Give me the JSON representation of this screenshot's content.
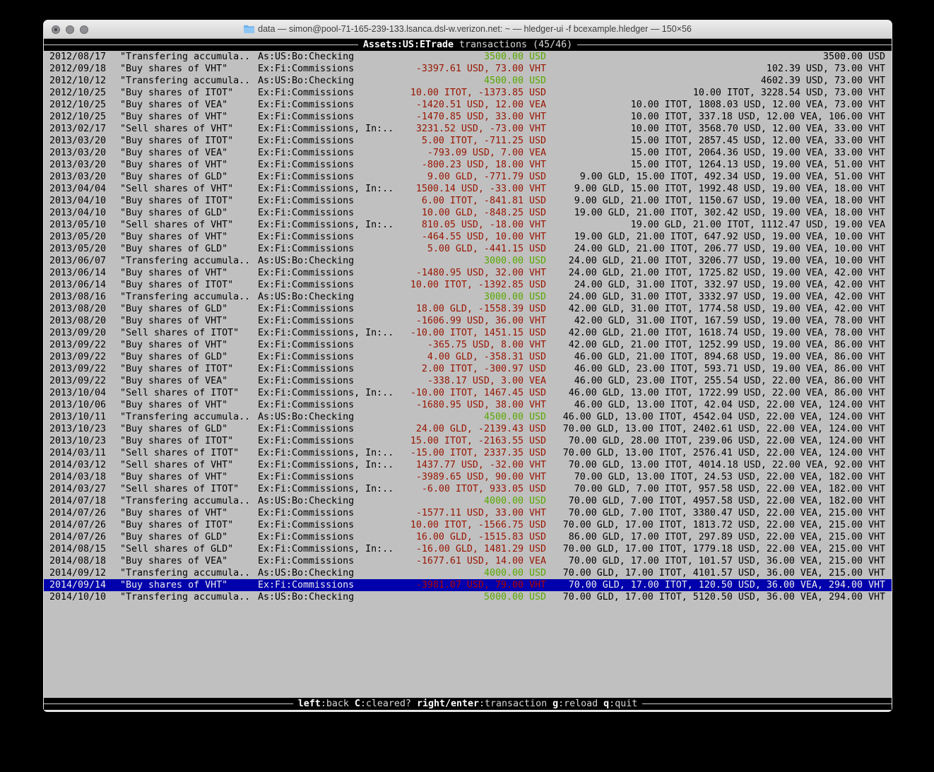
{
  "window": {
    "title": "data — simon@pool-71-165-239-133.lsanca.dsl-w.verizon.net: ~ — hledger-ui -f bcexample.hledger — 150×56",
    "traffic_lights": [
      "close",
      "minimize",
      "zoom"
    ]
  },
  "screen": {
    "account": "Assets:US:ETrade",
    "suffix": " transactions (45/46)"
  },
  "register": {
    "selected_index": 44,
    "rows": [
      {
        "date": "2012/08/17",
        "description": "\"Transfering accumula..",
        "accounts": "As:US:Bo:Checking",
        "amount": "3500.00 USD",
        "amount_color": "green",
        "balance": "3500.00 USD"
      },
      {
        "date": "2012/09/18",
        "description": "\"Buy shares of VHT\"",
        "accounts": "Ex:Fi:Commissions",
        "amount": "-3397.61 USD, 73.00 VHT",
        "amount_color": "red",
        "balance": "102.39 USD, 73.00 VHT"
      },
      {
        "date": "2012/10/12",
        "description": "\"Transfering accumula..",
        "accounts": "As:US:Bo:Checking",
        "amount": "4500.00 USD",
        "amount_color": "green",
        "balance": "4602.39 USD, 73.00 VHT"
      },
      {
        "date": "2012/10/25",
        "description": "\"Buy shares of ITOT\"",
        "accounts": "Ex:Fi:Commissions",
        "amount": "10.00 ITOT, -1373.85 USD",
        "amount_color": "red",
        "balance": "10.00 ITOT, 3228.54 USD, 73.00 VHT"
      },
      {
        "date": "2012/10/25",
        "description": "\"Buy shares of VEA\"",
        "accounts": "Ex:Fi:Commissions",
        "amount": "-1420.51 USD, 12.00 VEA",
        "amount_color": "red",
        "balance": "10.00 ITOT, 1808.03 USD, 12.00 VEA, 73.00 VHT"
      },
      {
        "date": "2012/10/25",
        "description": "\"Buy shares of VHT\"",
        "accounts": "Ex:Fi:Commissions",
        "amount": "-1470.85 USD, 33.00 VHT",
        "amount_color": "red",
        "balance": "10.00 ITOT, 337.18 USD, 12.00 VEA, 106.00 VHT"
      },
      {
        "date": "2013/02/17",
        "description": "\"Sell shares of VHT\"",
        "accounts": "Ex:Fi:Commissions, In:..",
        "amount": "3231.52 USD, -73.00 VHT",
        "amount_color": "red",
        "balance": "10.00 ITOT, 3568.70 USD, 12.00 VEA, 33.00 VHT"
      },
      {
        "date": "2013/03/20",
        "description": "\"Buy shares of ITOT\"",
        "accounts": "Ex:Fi:Commissions",
        "amount": "5.00 ITOT, -711.25 USD",
        "amount_color": "red",
        "balance": "15.00 ITOT, 2857.45 USD, 12.00 VEA, 33.00 VHT"
      },
      {
        "date": "2013/03/20",
        "description": "\"Buy shares of VEA\"",
        "accounts": "Ex:Fi:Commissions",
        "amount": "-793.09 USD, 7.00 VEA",
        "amount_color": "red",
        "balance": "15.00 ITOT, 2064.36 USD, 19.00 VEA, 33.00 VHT"
      },
      {
        "date": "2013/03/20",
        "description": "\"Buy shares of VHT\"",
        "accounts": "Ex:Fi:Commissions",
        "amount": "-800.23 USD, 18.00 VHT",
        "amount_color": "red",
        "balance": "15.00 ITOT, 1264.13 USD, 19.00 VEA, 51.00 VHT"
      },
      {
        "date": "2013/03/20",
        "description": "\"Buy shares of GLD\"",
        "accounts": "Ex:Fi:Commissions",
        "amount": "9.00 GLD, -771.79 USD",
        "amount_color": "red",
        "balance": "9.00 GLD, 15.00 ITOT, 492.34 USD, 19.00 VEA, 51.00 VHT"
      },
      {
        "date": "2013/04/04",
        "description": "\"Sell shares of VHT\"",
        "accounts": "Ex:Fi:Commissions, In:..",
        "amount": "1500.14 USD, -33.00 VHT",
        "amount_color": "red",
        "balance": "9.00 GLD, 15.00 ITOT, 1992.48 USD, 19.00 VEA, 18.00 VHT"
      },
      {
        "date": "2013/04/10",
        "description": "\"Buy shares of ITOT\"",
        "accounts": "Ex:Fi:Commissions",
        "amount": "6.00 ITOT, -841.81 USD",
        "amount_color": "red",
        "balance": "9.00 GLD, 21.00 ITOT, 1150.67 USD, 19.00 VEA, 18.00 VHT"
      },
      {
        "date": "2013/04/10",
        "description": "\"Buy shares of GLD\"",
        "accounts": "Ex:Fi:Commissions",
        "amount": "10.00 GLD, -848.25 USD",
        "amount_color": "red",
        "balance": "19.00 GLD, 21.00 ITOT, 302.42 USD, 19.00 VEA, 18.00 VHT"
      },
      {
        "date": "2013/05/10",
        "description": "\"Sell shares of VHT\"",
        "accounts": "Ex:Fi:Commissions, In:..",
        "amount": "810.05 USD, -18.00 VHT",
        "amount_color": "red",
        "balance": "19.00 GLD, 21.00 ITOT, 1112.47 USD, 19.00 VEA"
      },
      {
        "date": "2013/05/20",
        "description": "\"Buy shares of VHT\"",
        "accounts": "Ex:Fi:Commissions",
        "amount": "-464.55 USD, 10.00 VHT",
        "amount_color": "red",
        "balance": "19.00 GLD, 21.00 ITOT, 647.92 USD, 19.00 VEA, 10.00 VHT"
      },
      {
        "date": "2013/05/20",
        "description": "\"Buy shares of GLD\"",
        "accounts": "Ex:Fi:Commissions",
        "amount": "5.00 GLD, -441.15 USD",
        "amount_color": "red",
        "balance": "24.00 GLD, 21.00 ITOT, 206.77 USD, 19.00 VEA, 10.00 VHT"
      },
      {
        "date": "2013/06/07",
        "description": "\"Transfering accumula..",
        "accounts": "As:US:Bo:Checking",
        "amount": "3000.00 USD",
        "amount_color": "green",
        "balance": "24.00 GLD, 21.00 ITOT, 3206.77 USD, 19.00 VEA, 10.00 VHT"
      },
      {
        "date": "2013/06/14",
        "description": "\"Buy shares of VHT\"",
        "accounts": "Ex:Fi:Commissions",
        "amount": "-1480.95 USD, 32.00 VHT",
        "amount_color": "red",
        "balance": "24.00 GLD, 21.00 ITOT, 1725.82 USD, 19.00 VEA, 42.00 VHT"
      },
      {
        "date": "2013/06/14",
        "description": "\"Buy shares of ITOT\"",
        "accounts": "Ex:Fi:Commissions",
        "amount": "10.00 ITOT, -1392.85 USD",
        "amount_color": "red",
        "balance": "24.00 GLD, 31.00 ITOT, 332.97 USD, 19.00 VEA, 42.00 VHT"
      },
      {
        "date": "2013/08/16",
        "description": "\"Transfering accumula..",
        "accounts": "As:US:Bo:Checking",
        "amount": "3000.00 USD",
        "amount_color": "green",
        "balance": "24.00 GLD, 31.00 ITOT, 3332.97 USD, 19.00 VEA, 42.00 VHT"
      },
      {
        "date": "2013/08/20",
        "description": "\"Buy shares of GLD\"",
        "accounts": "Ex:Fi:Commissions",
        "amount": "18.00 GLD, -1558.39 USD",
        "amount_color": "red",
        "balance": "42.00 GLD, 31.00 ITOT, 1774.58 USD, 19.00 VEA, 42.00 VHT"
      },
      {
        "date": "2013/08/20",
        "description": "\"Buy shares of VHT\"",
        "accounts": "Ex:Fi:Commissions",
        "amount": "-1606.99 USD, 36.00 VHT",
        "amount_color": "red",
        "balance": "42.00 GLD, 31.00 ITOT, 167.59 USD, 19.00 VEA, 78.00 VHT"
      },
      {
        "date": "2013/09/20",
        "description": "\"Sell shares of ITOT\"",
        "accounts": "Ex:Fi:Commissions, In:..",
        "amount": "-10.00 ITOT, 1451.15 USD",
        "amount_color": "red",
        "balance": "42.00 GLD, 21.00 ITOT, 1618.74 USD, 19.00 VEA, 78.00 VHT"
      },
      {
        "date": "2013/09/22",
        "description": "\"Buy shares of VHT\"",
        "accounts": "Ex:Fi:Commissions",
        "amount": "-365.75 USD, 8.00 VHT",
        "amount_color": "red",
        "balance": "42.00 GLD, 21.00 ITOT, 1252.99 USD, 19.00 VEA, 86.00 VHT"
      },
      {
        "date": "2013/09/22",
        "description": "\"Buy shares of GLD\"",
        "accounts": "Ex:Fi:Commissions",
        "amount": "4.00 GLD, -358.31 USD",
        "amount_color": "red",
        "balance": "46.00 GLD, 21.00 ITOT, 894.68 USD, 19.00 VEA, 86.00 VHT"
      },
      {
        "date": "2013/09/22",
        "description": "\"Buy shares of ITOT\"",
        "accounts": "Ex:Fi:Commissions",
        "amount": "2.00 ITOT, -300.97 USD",
        "amount_color": "red",
        "balance": "46.00 GLD, 23.00 ITOT, 593.71 USD, 19.00 VEA, 86.00 VHT"
      },
      {
        "date": "2013/09/22",
        "description": "\"Buy shares of VEA\"",
        "accounts": "Ex:Fi:Commissions",
        "amount": "-338.17 USD, 3.00 VEA",
        "amount_color": "red",
        "balance": "46.00 GLD, 23.00 ITOT, 255.54 USD, 22.00 VEA, 86.00 VHT"
      },
      {
        "date": "2013/10/04",
        "description": "\"Sell shares of ITOT\"",
        "accounts": "Ex:Fi:Commissions, In:..",
        "amount": "-10.00 ITOT, 1467.45 USD",
        "amount_color": "red",
        "balance": "46.00 GLD, 13.00 ITOT, 1722.99 USD, 22.00 VEA, 86.00 VHT"
      },
      {
        "date": "2013/10/06",
        "description": "\"Buy shares of VHT\"",
        "accounts": "Ex:Fi:Commissions",
        "amount": "-1680.95 USD, 38.00 VHT",
        "amount_color": "red",
        "balance": "46.00 GLD, 13.00 ITOT, 42.04 USD, 22.00 VEA, 124.00 VHT"
      },
      {
        "date": "2013/10/11",
        "description": "\"Transfering accumula..",
        "accounts": "As:US:Bo:Checking",
        "amount": "4500.00 USD",
        "amount_color": "green",
        "balance": "46.00 GLD, 13.00 ITOT, 4542.04 USD, 22.00 VEA, 124.00 VHT"
      },
      {
        "date": "2013/10/23",
        "description": "\"Buy shares of GLD\"",
        "accounts": "Ex:Fi:Commissions",
        "amount": "24.00 GLD, -2139.43 USD",
        "amount_color": "red",
        "balance": "70.00 GLD, 13.00 ITOT, 2402.61 USD, 22.00 VEA, 124.00 VHT"
      },
      {
        "date": "2013/10/23",
        "description": "\"Buy shares of ITOT\"",
        "accounts": "Ex:Fi:Commissions",
        "amount": "15.00 ITOT, -2163.55 USD",
        "amount_color": "red",
        "balance": "70.00 GLD, 28.00 ITOT, 239.06 USD, 22.00 VEA, 124.00 VHT"
      },
      {
        "date": "2014/03/11",
        "description": "\"Sell shares of ITOT\"",
        "accounts": "Ex:Fi:Commissions, In:..",
        "amount": "-15.00 ITOT, 2337.35 USD",
        "amount_color": "red",
        "balance": "70.00 GLD, 13.00 ITOT, 2576.41 USD, 22.00 VEA, 124.00 VHT"
      },
      {
        "date": "2014/03/12",
        "description": "\"Sell shares of VHT\"",
        "accounts": "Ex:Fi:Commissions, In:..",
        "amount": "1437.77 USD, -32.00 VHT",
        "amount_color": "red",
        "balance": "70.00 GLD, 13.00 ITOT, 4014.18 USD, 22.00 VEA, 92.00 VHT"
      },
      {
        "date": "2014/03/18",
        "description": "\"Buy shares of VHT\"",
        "accounts": "Ex:Fi:Commissions",
        "amount": "-3989.65 USD, 90.00 VHT",
        "amount_color": "red",
        "balance": "70.00 GLD, 13.00 ITOT, 24.53 USD, 22.00 VEA, 182.00 VHT"
      },
      {
        "date": "2014/03/27",
        "description": "\"Sell shares of ITOT\"",
        "accounts": "Ex:Fi:Commissions, In:..",
        "amount": "-6.00 ITOT, 933.05 USD",
        "amount_color": "red",
        "balance": "70.00 GLD, 7.00 ITOT, 957.58 USD, 22.00 VEA, 182.00 VHT"
      },
      {
        "date": "2014/07/18",
        "description": "\"Transfering accumula..",
        "accounts": "As:US:Bo:Checking",
        "amount": "4000.00 USD",
        "amount_color": "green",
        "balance": "70.00 GLD, 7.00 ITOT, 4957.58 USD, 22.00 VEA, 182.00 VHT"
      },
      {
        "date": "2014/07/26",
        "description": "\"Buy shares of VHT\"",
        "accounts": "Ex:Fi:Commissions",
        "amount": "-1577.11 USD, 33.00 VHT",
        "amount_color": "red",
        "balance": "70.00 GLD, 7.00 ITOT, 3380.47 USD, 22.00 VEA, 215.00 VHT"
      },
      {
        "date": "2014/07/26",
        "description": "\"Buy shares of ITOT\"",
        "accounts": "Ex:Fi:Commissions",
        "amount": "10.00 ITOT, -1566.75 USD",
        "amount_color": "red",
        "balance": "70.00 GLD, 17.00 ITOT, 1813.72 USD, 22.00 VEA, 215.00 VHT"
      },
      {
        "date": "2014/07/26",
        "description": "\"Buy shares of GLD\"",
        "accounts": "Ex:Fi:Commissions",
        "amount": "16.00 GLD, -1515.83 USD",
        "amount_color": "red",
        "balance": "86.00 GLD, 17.00 ITOT, 297.89 USD, 22.00 VEA, 215.00 VHT"
      },
      {
        "date": "2014/08/15",
        "description": "\"Sell shares of GLD\"",
        "accounts": "Ex:Fi:Commissions, In:..",
        "amount": "-16.00 GLD, 1481.29 USD",
        "amount_color": "red",
        "balance": "70.00 GLD, 17.00 ITOT, 1779.18 USD, 22.00 VEA, 215.00 VHT"
      },
      {
        "date": "2014/08/18",
        "description": "\"Buy shares of VEA\"",
        "accounts": "Ex:Fi:Commissions",
        "amount": "-1677.61 USD, 14.00 VEA",
        "amount_color": "red",
        "balance": "70.00 GLD, 17.00 ITOT, 101.57 USD, 36.00 VEA, 215.00 VHT"
      },
      {
        "date": "2014/09/12",
        "description": "\"Transfering accumula..",
        "accounts": "As:US:Bo:Checking",
        "amount": "4000.00 USD",
        "amount_color": "green",
        "balance": "70.00 GLD, 17.00 ITOT, 4101.57 USD, 36.00 VEA, 215.00 VHT"
      },
      {
        "date": "2014/09/14",
        "description": "\"Buy shares of VHT\"",
        "accounts": "Ex:Fi:Commissions",
        "amount": "-3981.07 USD, 79.00 VHT",
        "amount_color": "red",
        "balance": "70.00 GLD, 17.00 ITOT, 120.50 USD, 36.00 VEA, 294.00 VHT"
      },
      {
        "date": "2014/10/10",
        "description": "\"Transfering accumula..",
        "accounts": "As:US:Bo:Checking",
        "amount": "5000.00 USD",
        "amount_color": "green",
        "balance": "70.00 GLD, 17.00 ITOT, 5120.50 USD, 36.00 VEA, 294.00 VHT"
      }
    ]
  },
  "footer": {
    "hints": [
      {
        "key": "left",
        "desc": "back"
      },
      {
        "key": "C",
        "desc": "cleared?"
      },
      {
        "key": "right/enter",
        "desc": "transaction"
      },
      {
        "key": "g",
        "desc": "reload"
      },
      {
        "key": "q",
        "desc": "quit"
      }
    ]
  },
  "colors": {
    "terminal_bg": "#c0c0c0",
    "bar_bg": "#000000",
    "amount_negative": "#981400",
    "amount_positive": "#58a800",
    "selection_bg": "#0000ac"
  }
}
